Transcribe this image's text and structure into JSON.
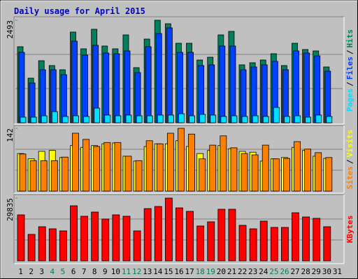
{
  "title": "Daily usage for April 2015",
  "separator": "/",
  "chart_data": [
    {
      "type": "bar",
      "series": [
        {
          "name": "Hits",
          "color": "#00805c",
          "values": [
            1849,
            1085,
            1509,
            1391,
            1289,
            2205,
            1798,
            2273,
            1866,
            1798,
            2137,
            1340,
            2035,
            2493,
            2408,
            1933,
            1933,
            1526,
            1594,
            2137,
            2222,
            1408,
            1459,
            1526,
            1679,
            1391,
            1933,
            1781,
            1747,
            1357,
            null
          ]
        },
        {
          "name": "Files",
          "color": "#0040ff",
          "values": [
            1713,
            967,
            1289,
            1289,
            1170,
            1984,
            1645,
            1883,
            1696,
            1679,
            1747,
            1221,
            1849,
            2171,
            2307,
            1713,
            1713,
            1391,
            1408,
            1866,
            1866,
            1289,
            1357,
            1408,
            1493,
            1289,
            1747,
            1696,
            1628,
            1255,
            null
          ]
        },
        {
          "name": "Pages",
          "color": "#00e0ff",
          "values": [
            136,
            136,
            170,
            271,
            153,
            170,
            153,
            356,
            187,
            170,
            187,
            170,
            170,
            187,
            187,
            220,
            170,
            204,
            187,
            153,
            170,
            153,
            170,
            153,
            373,
            153,
            170,
            136,
            187,
            153,
            null
          ]
        }
      ],
      "ylim": [
        0,
        2493
      ],
      "yticks": [
        2493
      ]
    },
    {
      "type": "bar",
      "series": [
        {
          "name": "Visits",
          "color": "#ffff00",
          "values": [
            85,
            73,
            90,
            92,
            76,
            103,
            99,
            103,
            107,
            109,
            79,
            68,
            101,
            107,
            107,
            114,
            101,
            85,
            92,
            103,
            96,
            90,
            88,
            68,
            73,
            76,
            99,
            92,
            79,
            74,
            null
          ]
        },
        {
          "name": "Sites",
          "color": "#ff8000",
          "values": [
            84,
            69,
            69,
            69,
            77,
            131,
            117,
            101,
            110,
            110,
            79,
            69,
            114,
            107,
            131,
            142,
            129,
            73,
            104,
            125,
            98,
            85,
            82,
            104,
            73,
            74,
            112,
            95,
            87,
            76,
            null
          ]
        }
      ],
      "ylim": [
        0,
        142
      ],
      "yticks": [
        142
      ]
    },
    {
      "type": "bar",
      "series": [
        {
          "name": "KBytes",
          "color": "#ff0000",
          "values": [
            21879,
            12597,
            16244,
            15249,
            14255,
            26189,
            21216,
            23205,
            19890,
            21879,
            21216,
            14255,
            24863,
            25857,
            29835,
            25194,
            23537,
            16575,
            18564,
            24531,
            24531,
            16907,
            15249,
            18896,
            15912,
            15912,
            22874,
            20885,
            20222,
            16244,
            null
          ]
        }
      ],
      "ylim": [
        0,
        29835
      ],
      "yticks": [
        29835
      ],
      "categories": [
        "1",
        "2",
        "3",
        "4",
        "5",
        "6",
        "7",
        "8",
        "9",
        "10",
        "11",
        "12",
        "13",
        "14",
        "15",
        "16",
        "17",
        "18",
        "19",
        "20",
        "21",
        "22",
        "23",
        "24",
        "25",
        "26",
        "27",
        "28",
        "29",
        "30",
        "31"
      ],
      "category_colors": [
        "#000000",
        "#000000",
        "#000000",
        "#00805c",
        "#00805c",
        "#000000",
        "#000000",
        "#000000",
        "#000000",
        "#000000",
        "#00805c",
        "#00805c",
        "#000000",
        "#000000",
        "#000000",
        "#000000",
        "#000000",
        "#00805c",
        "#00805c",
        "#000000",
        "#000000",
        "#000000",
        "#000000",
        "#000000",
        "#00805c",
        "#00805c",
        "#000000",
        "#000000",
        "#000000",
        "#000000",
        "#000000"
      ]
    }
  ]
}
